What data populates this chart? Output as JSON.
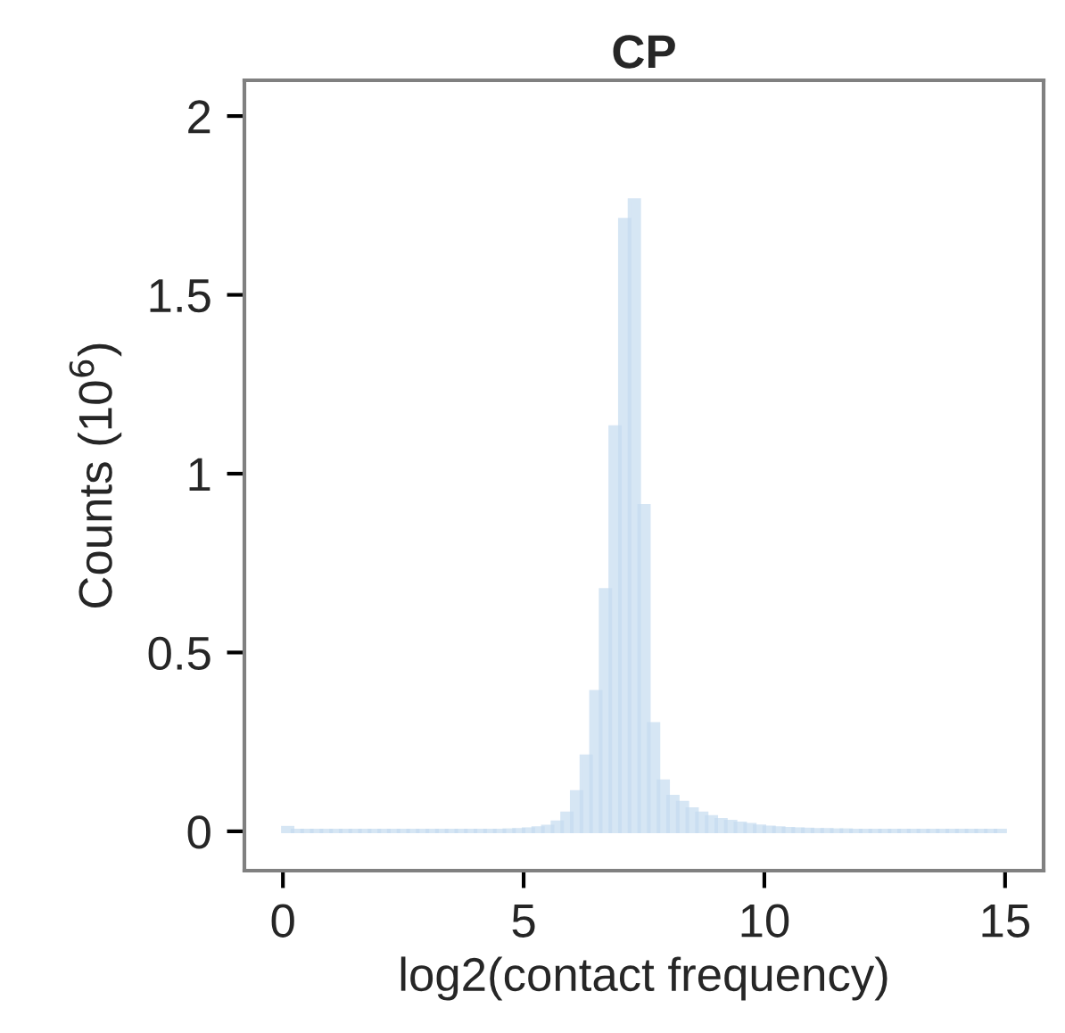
{
  "chart_data": {
    "type": "histogram",
    "title": "CP",
    "xlabel": "log2(contact frequency)",
    "ylabel": "Counts (10$^{6}$)",
    "color": "#c6dcf0",
    "bins": [
      0,
      0.2,
      0.4,
      0.6,
      0.8,
      1,
      1.2,
      1.4,
      1.6,
      1.8,
      2,
      2.2,
      2.4,
      2.6,
      2.8,
      3,
      3.2,
      3.4,
      3.6,
      3.8,
      4,
      4.2,
      4.4,
      4.6,
      4.8,
      5,
      5.2,
      5.4,
      5.6,
      5.8,
      6,
      6.2,
      6.4,
      6.6,
      6.8,
      7,
      7.2,
      7.4,
      7.6,
      7.8,
      8,
      8.2,
      8.4,
      8.6,
      8.8,
      9,
      9.2,
      9.4,
      9.6,
      9.8,
      10,
      10.2,
      10.4,
      10.6,
      10.8,
      11,
      11.2,
      11.4,
      11.6,
      11.8,
      12,
      12.2,
      12.4,
      12.6,
      12.8,
      13,
      13.2,
      13.4,
      13.6,
      13.8,
      14,
      14.2,
      14.4,
      14.6,
      14.8,
      15
    ],
    "values": [
      0.01,
      0.002,
      0.002,
      0.002,
      0.002,
      0.002,
      0.002,
      0.002,
      0.002,
      0.002,
      0.002,
      0.002,
      0.002,
      0.002,
      0.002,
      0.002,
      0.002,
      0.002,
      0.002,
      0.002,
      0.002,
      0.002,
      0.002,
      0.003,
      0.004,
      0.006,
      0.009,
      0.013,
      0.025,
      0.05,
      0.11,
      0.21,
      0.39,
      0.675,
      1.13,
      1.71,
      1.765,
      0.91,
      0.3,
      0.14,
      0.097,
      0.08,
      0.062,
      0.05,
      0.04,
      0.032,
      0.027,
      0.022,
      0.018,
      0.014,
      0.011,
      0.009,
      0.007,
      0.006,
      0.005,
      0.004,
      0.004,
      0.003,
      0.003,
      0.002,
      0.002,
      0.002,
      0.002,
      0.002,
      0.002,
      0.002,
      0.002,
      0.002,
      0.002,
      0.002,
      0.002,
      0.002,
      0.002,
      0.002,
      0.002
    ],
    "xlim": [
      -0.8,
      15.8
    ],
    "xticks": [
      0,
      5,
      10,
      15
    ],
    "ylim": [
      -0.11,
      2.1
    ],
    "yticks": [
      0,
      0.5,
      1,
      1.5,
      2
    ],
    "grid": false
  }
}
